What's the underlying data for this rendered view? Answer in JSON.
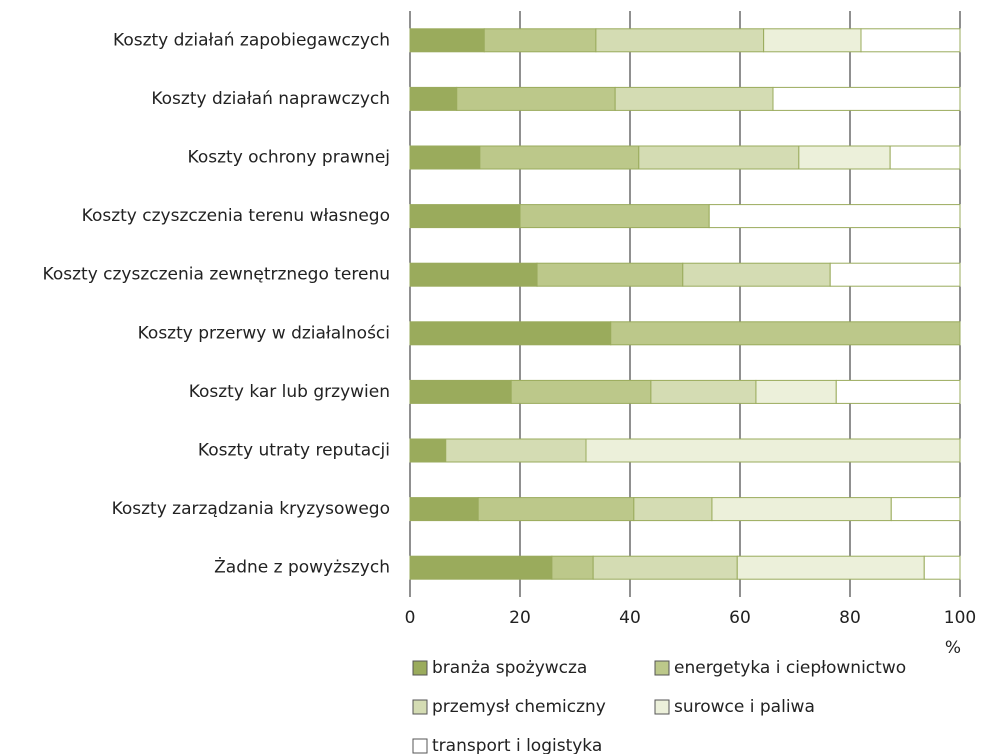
{
  "chart_data": {
    "type": "stacked-bar-horizontal",
    "categories": [
      "Koszty działań zapobiegawczych",
      "Koszty działań naprawczych",
      "Koszty ochrony prawnej",
      "Koszty czyszczenia terenu własnego",
      "Koszty czyszczenia zewnętrznego terenu",
      "Koszty przerwy w działalności",
      "Koszty kar lub grzywien",
      "Koszty utraty reputacji",
      "Koszty zarządzania kryzysowego",
      "Żadne z powyższych"
    ],
    "series": [
      {
        "name": "branża spożywcza",
        "color": "#9aab5c",
        "values": [
          13.5,
          8.5,
          12.7,
          20,
          23.1,
          36.5,
          18.4,
          6.5,
          12.4,
          25.8
        ]
      },
      {
        "name": "energetyka i ciepłownictwo",
        "color": "#bcc88a",
        "values": [
          20.3,
          28.8,
          28.9,
          34.4,
          26.5,
          63.5,
          25.4,
          0,
          28.3,
          7.5
        ]
      },
      {
        "name": "przemysł chemiczny",
        "color": "#d4dcb3",
        "values": [
          30.5,
          28.7,
          29.1,
          0,
          26.8,
          0,
          19.1,
          25.5,
          14.2,
          26.2
        ]
      },
      {
        "name": "surowce i paliwa",
        "color": "#ecf0da",
        "values": [
          17.7,
          0,
          16.6,
          0,
          0,
          0,
          14.6,
          68,
          32.6,
          34
        ]
      },
      {
        "name": "transport i logistyka",
        "color": "#ffffff",
        "values": [
          18,
          34,
          12.7,
          45.6,
          23.6,
          0,
          22.5,
          0,
          12.5,
          6.5
        ]
      }
    ],
    "xlim": [
      0,
      100
    ],
    "xticks": [
      0,
      20,
      40,
      60,
      80,
      100
    ],
    "xlabel": "%",
    "grid": true
  }
}
